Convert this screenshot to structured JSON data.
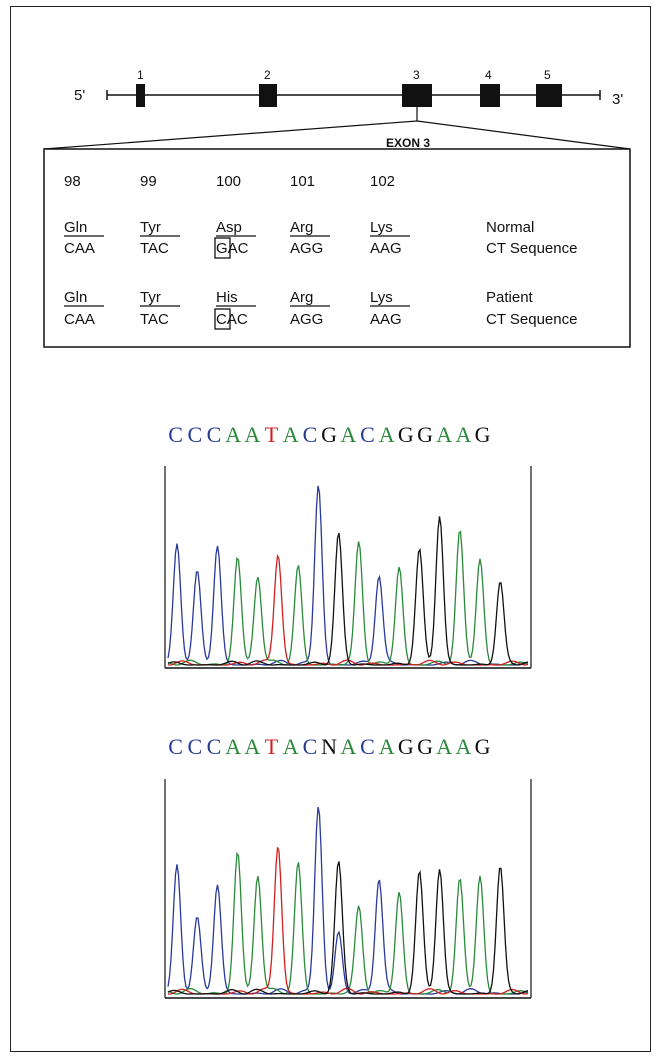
{
  "gene": {
    "five_prime": "5'",
    "three_prime": "3'",
    "exons": [
      "1",
      "2",
      "3",
      "4",
      "5"
    ],
    "expanded_label": "EXON 3"
  },
  "codons": {
    "positions": [
      "98",
      "99",
      "100",
      "101",
      "102"
    ],
    "normal": {
      "amino_acids": [
        "Gln",
        "Tyr",
        "Asp",
        "Arg",
        "Lys"
      ],
      "triplets": [
        "CAA",
        "TAC",
        "GAC",
        "AGG",
        "AAG"
      ],
      "label_line1": "Normal",
      "label_line2": "CT Sequence"
    },
    "patient": {
      "amino_acids": [
        "Gln",
        "Tyr",
        "His",
        "Arg",
        "Lys"
      ],
      "triplets": [
        "CAA",
        "TAC",
        "CAC",
        "AGG",
        "AAG"
      ],
      "label_line1": "Patient",
      "label_line2": "CT Sequence"
    }
  },
  "colors": {
    "C": "#2a3a9a",
    "A": "#2a8a3a",
    "T": "#d21f1f",
    "G": "#111111",
    "N": "#111111"
  },
  "chromatograms": [
    {
      "sequence": [
        "C",
        "C",
        "C",
        "A",
        "A",
        "T",
        "A",
        "C",
        "G",
        "A",
        "C",
        "A",
        "G",
        "G",
        "A",
        "A",
        "G"
      ]
    },
    {
      "sequence": [
        "C",
        "C",
        "C",
        "A",
        "A",
        "T",
        "A",
        "C",
        "N",
        "A",
        "C",
        "A",
        "G",
        "G",
        "A",
        "A",
        "G"
      ]
    }
  ]
}
